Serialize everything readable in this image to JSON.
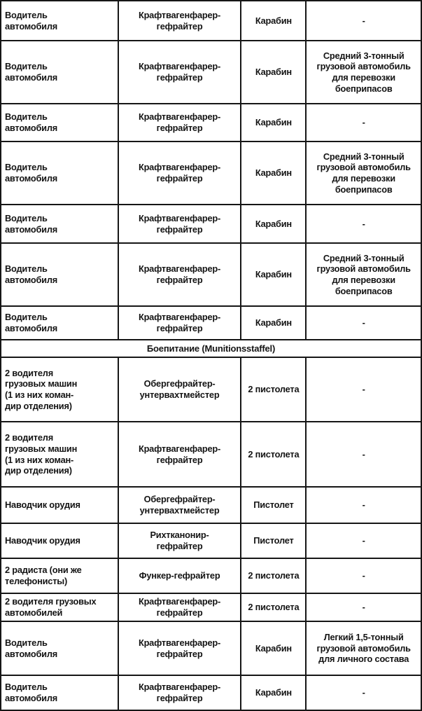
{
  "table": {
    "section_header": "Боепитание (Munitionsstaffel)",
    "rows": [
      {
        "type": "data",
        "cells": [
          "Водитель\nавтомобиля",
          "Крафтвагенфарер-\nгефрайтер",
          "Карабин",
          "-"
        ]
      },
      {
        "type": "data",
        "cells": [
          "Водитель\nавтомобиля",
          "Крафтвагенфарер-\nгефрайтер",
          "Карабин",
          "Средний 3-тонный\nгрузовой автомобиль\nдля перевозки\nбоеприпасов"
        ]
      },
      {
        "type": "data",
        "cells": [
          "Водитель\nавтомобиля",
          "Крафтвагенфарер-\nгефрайтер",
          "Карабин",
          "-"
        ]
      },
      {
        "type": "data",
        "cells": [
          "Водитель\nавтомобиля",
          "Крафтвагенфарер-\nгефрайтер",
          "Карабин",
          "Средний 3-тонный\nгрузовой автомобиль\nдля перевозки\nбоеприпасов"
        ]
      },
      {
        "type": "data",
        "cells": [
          "Водитель\nавтомобиля",
          "Крафтвагенфарер-\nгефрайтер",
          "Карабин",
          "-"
        ]
      },
      {
        "type": "data",
        "cells": [
          "Водитель\nавтомобиля",
          "Крафтвагенфарер-\nгефрайтер",
          "Карабин",
          "Средний 3-тонный\nгрузовой автомобиль\nдля перевозки\nбоеприпасов"
        ]
      },
      {
        "type": "data",
        "cells": [
          "Водитель\nавтомобиля",
          "Крафтвагенфарер-\nгефрайтер",
          "Карабин",
          "-"
        ]
      },
      {
        "type": "section",
        "text": "Боепитание (Munitionsstaffel)"
      },
      {
        "type": "data",
        "cells": [
          "2 водителя\nгрузовых машин\n(1 из них коман-\nдир отделения)",
          "Обергефрайтер-\nунтервахтмейстер",
          "2 пистолета",
          "-"
        ]
      },
      {
        "type": "data",
        "cells": [
          "2 водителя\nгрузовых машин\n(1 из них коман-\nдир отделения)",
          "Крафтвагенфарер-\nгефрайтер",
          "2 пистолета",
          "-"
        ]
      },
      {
        "type": "data",
        "cells": [
          "Наводчик орудия",
          "Обергефрайтер-\nунтервахтмейстер",
          "Пистолет",
          "-"
        ]
      },
      {
        "type": "data",
        "cells": [
          "Наводчик орудия",
          "Рихтканонир-\nгефрайтер",
          "Пистолет",
          "-"
        ]
      },
      {
        "type": "data",
        "cells": [
          "2 радиста (они же\nтелефонисты)",
          "Функер-гефрайтер",
          "2 пистолета",
          "-"
        ]
      },
      {
        "type": "data",
        "cells": [
          "2 водителя грузовых\nавтомобилей",
          "Крафтвагенфарер-\nгефрайтер",
          "2 пистолета",
          "-"
        ]
      },
      {
        "type": "data",
        "cells": [
          "Водитель\nавтомобиля",
          "Крафтвагенфарер-\nгефрайтер",
          "Карабин",
          "Легкий 1,5-тонный\nгрузовой автомобиль\nдля личного состава"
        ]
      },
      {
        "type": "data",
        "cells": [
          "Водитель\nавтомобиля",
          "Крафтвагенфарер-\nгефрайтер",
          "Карабин",
          "-"
        ]
      }
    ]
  }
}
